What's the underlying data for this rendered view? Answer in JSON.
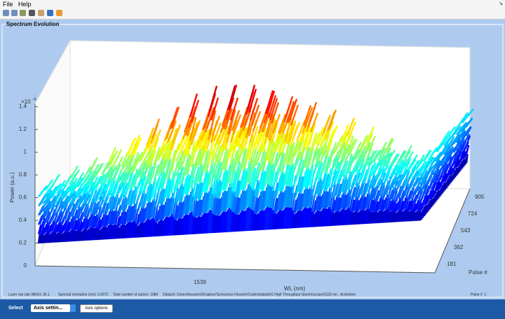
{
  "menu": {
    "items": [
      "File",
      "Help"
    ]
  },
  "panel": {
    "title": "Spectrum Evolution"
  },
  "plot": {
    "exponent_base": "×10",
    "exponent_power": "-4",
    "power_ticks": [
      "0",
      "0.2",
      "0.4",
      "0.6",
      "0.8",
      "1",
      "1.2",
      "1.4"
    ],
    "power_label": "Power (a.u.)",
    "wl_ticks": [
      "1539"
    ],
    "wl_label": "WL (nm)",
    "pulse_ticks": [
      "181",
      "362",
      "543",
      "724",
      "905"
    ],
    "pulse_label": "Pulse #"
  },
  "status": {
    "rep_rate": "Laser rep rate (MHz): 36.1",
    "resolution": "Spectral resolution (nm): 0.0072",
    "pulses": "Total number of pulses: 1084",
    "dataset": "Dataset:  /Users/hosseini/Dropbox/Tachyonics Hossein/Codes/dataset/2 High Throughput Spectroscopy/1530 nm - Acetylene",
    "pulse_number": "Pulse #: 1"
  },
  "footer": {
    "select_label": "Select",
    "dropdown": "Axis settin...",
    "button": "Axis options"
  }
}
